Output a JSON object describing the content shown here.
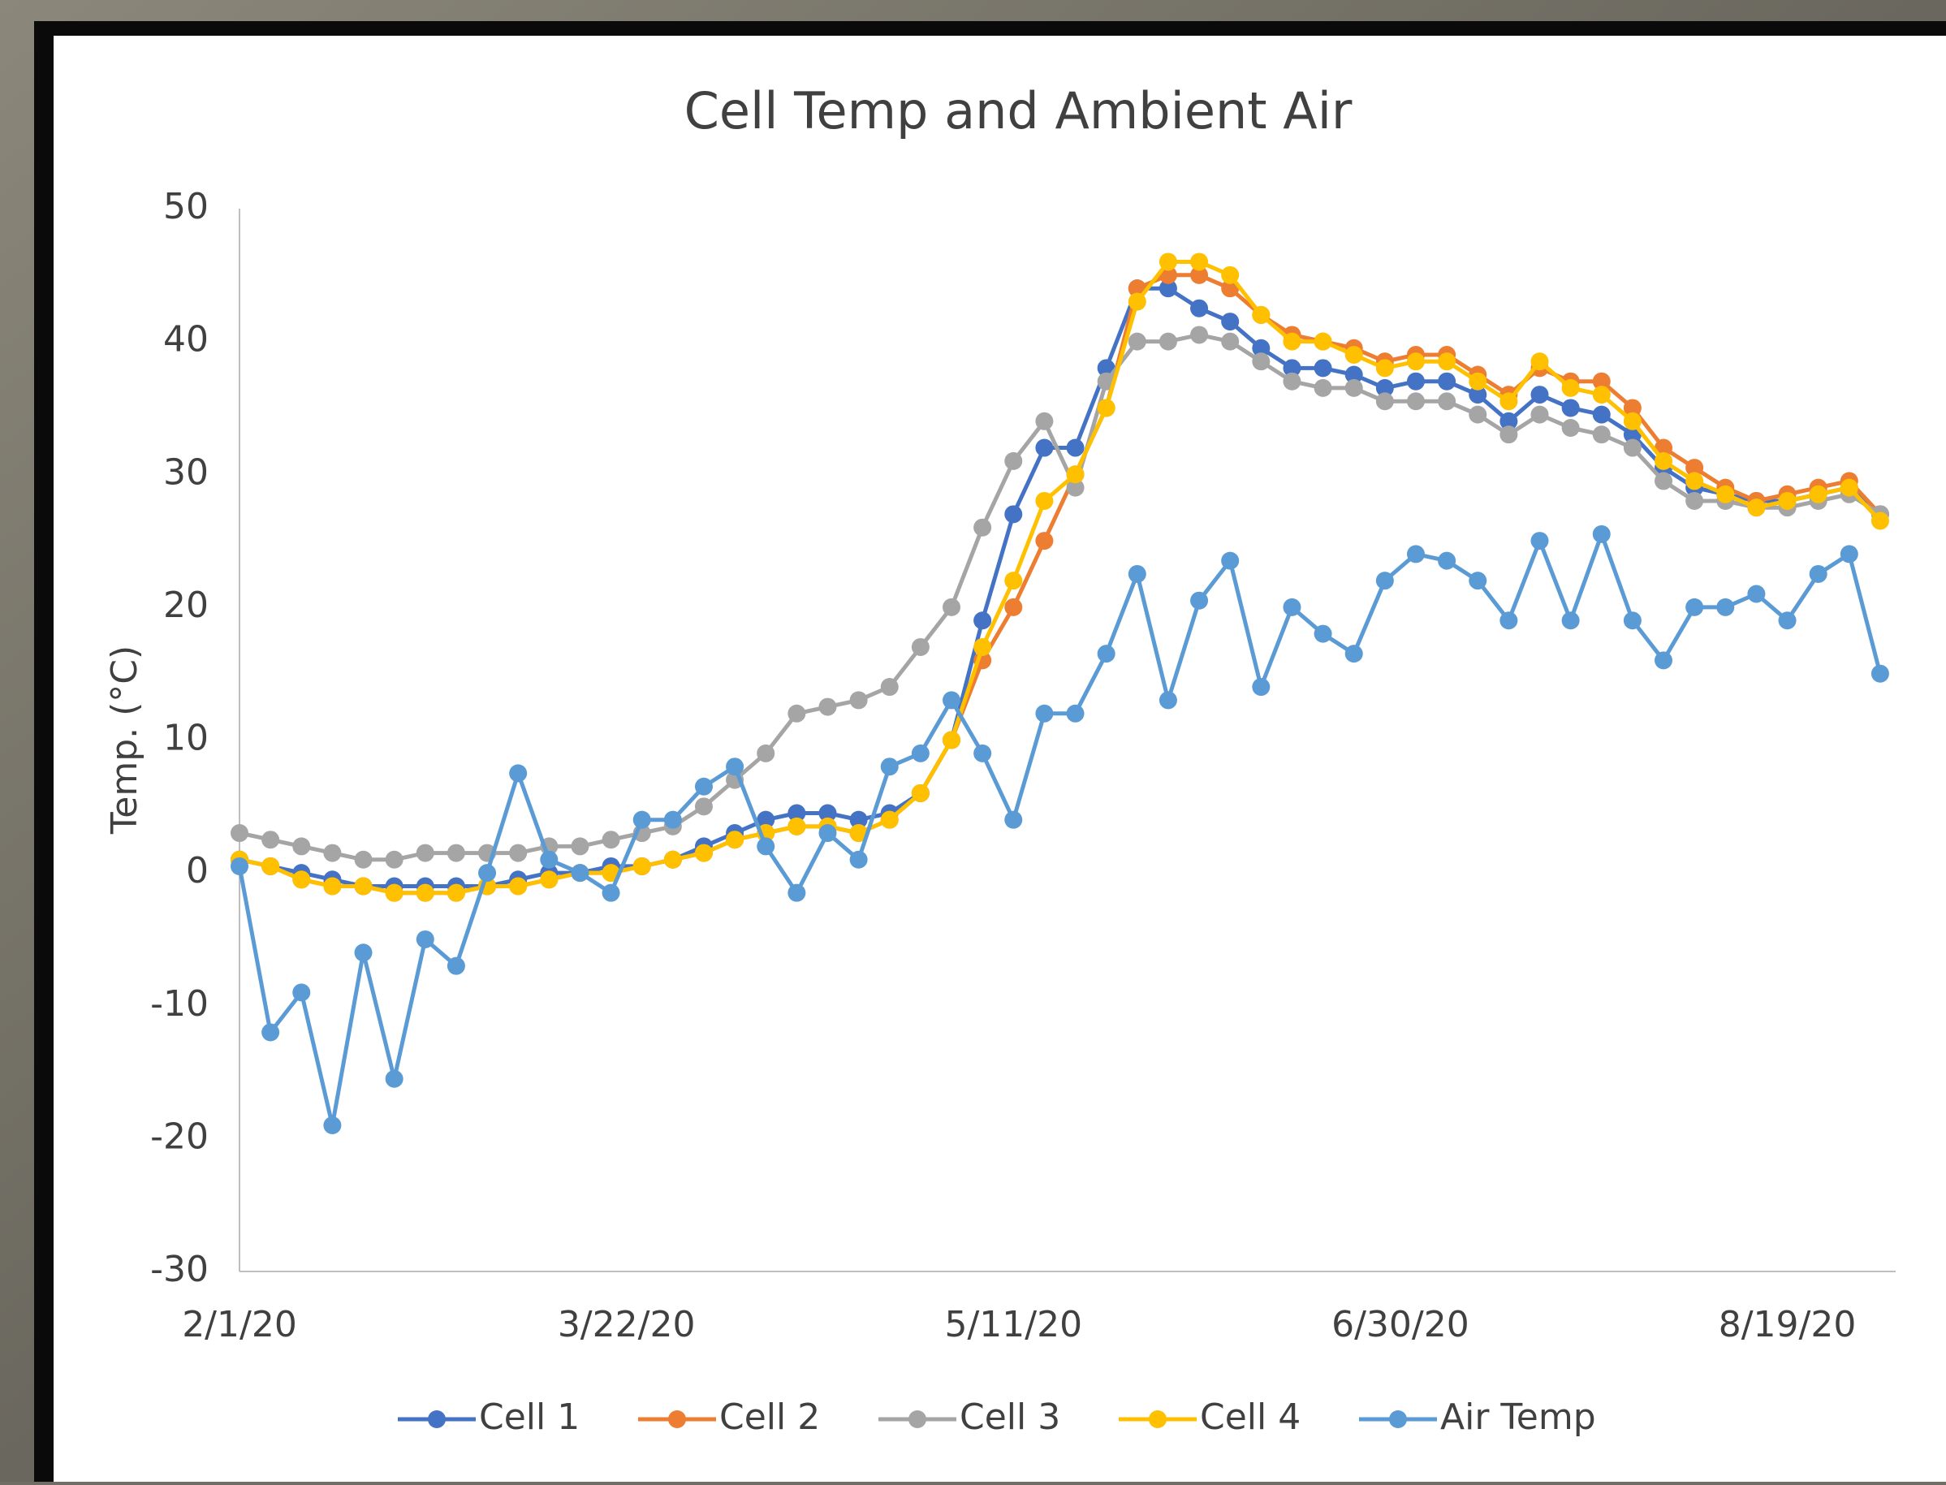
{
  "chart_data": {
    "type": "line",
    "title": "Cell Temp and Ambient Air",
    "y_label": "Temp. (°C)",
    "x": [
      "2/1/20",
      "2/5/20",
      "2/9/20",
      "2/13/20",
      "2/17/20",
      "2/21/20",
      "2/25/20",
      "2/29/20",
      "3/4/20",
      "3/8/20",
      "3/12/20",
      "3/16/20",
      "3/20/20",
      "3/24/20",
      "3/28/20",
      "4/1/20",
      "4/5/20",
      "4/9/20",
      "4/13/20",
      "4/17/20",
      "4/21/20",
      "4/25/20",
      "4/29/20",
      "5/3/20",
      "5/7/20",
      "5/11/20",
      "5/15/20",
      "5/19/20",
      "5/23/20",
      "5/27/20",
      "5/31/20",
      "6/4/20",
      "6/8/20",
      "6/12/20",
      "6/16/20",
      "6/20/20",
      "6/24/20",
      "6/28/20",
      "7/2/20",
      "7/6/20",
      "7/10/20",
      "7/14/20",
      "7/18/20",
      "7/22/20",
      "7/26/20",
      "7/30/20",
      "8/3/20",
      "8/7/20",
      "8/11/20",
      "8/15/20",
      "8/19/20",
      "8/23/20",
      "8/27/20",
      "8/31/20"
    ],
    "series": [
      {
        "name": "Cell 1",
        "color": "#4472c4",
        "values": [
          1,
          0.5,
          0,
          -0.5,
          -1,
          -1,
          -1,
          -1,
          -1,
          -0.5,
          0,
          0,
          0.5,
          0.5,
          1,
          2,
          3,
          4,
          4.5,
          4.5,
          4,
          4.5,
          6,
          10,
          19,
          27,
          32,
          32,
          38,
          44,
          44,
          42.5,
          41.5,
          39.5,
          38,
          38,
          37.5,
          36.5,
          37,
          37,
          36,
          34,
          36,
          35,
          34.5,
          33,
          30.5,
          29,
          28.5,
          28,
          28,
          28.5,
          29,
          27
        ]
      },
      {
        "name": "Cell 2",
        "color": "#ed7d31",
        "values": [
          1,
          0.5,
          -0.5,
          -1,
          -1,
          -1.5,
          -1.5,
          -1.5,
          -1,
          -1,
          -0.5,
          0,
          0,
          0.5,
          1,
          1.5,
          2.5,
          3,
          3.5,
          3.5,
          3,
          4,
          6,
          10,
          16,
          20,
          25,
          30,
          35,
          44,
          45,
          45,
          44,
          42,
          40.5,
          40,
          39.5,
          38.5,
          39,
          39,
          37.5,
          36,
          38,
          37,
          37,
          35,
          32,
          30.5,
          29,
          28,
          28.5,
          29,
          29.5,
          27
        ]
      },
      {
        "name": "Cell 3",
        "color": "#a5a5a5",
        "values": [
          3,
          2.5,
          2,
          1.5,
          1,
          1,
          1.5,
          1.5,
          1.5,
          1.5,
          2,
          2,
          2.5,
          3,
          3.5,
          5,
          7,
          9,
          12,
          12.5,
          13,
          14,
          17,
          20,
          26,
          31,
          34,
          29,
          37,
          40,
          40,
          40.5,
          40,
          38.5,
          37,
          36.5,
          36.5,
          35.5,
          35.5,
          35.5,
          34.5,
          33,
          34.5,
          33.5,
          33,
          32,
          29.5,
          28,
          28,
          27.5,
          27.5,
          28,
          28.5,
          27
        ]
      },
      {
        "name": "Cell 4",
        "color": "#ffc000",
        "values": [
          1,
          0.5,
          -0.5,
          -1,
          -1,
          -1.5,
          -1.5,
          -1.5,
          -1,
          -1,
          -0.5,
          0,
          0,
          0.5,
          1,
          1.5,
          2.5,
          3,
          3.5,
          3.5,
          3,
          4,
          6,
          10,
          17,
          22,
          28,
          30,
          35,
          43,
          46,
          46,
          45,
          42,
          40,
          40,
          39,
          38,
          38.5,
          38.5,
          37,
          35.5,
          38.5,
          36.5,
          36,
          34,
          31,
          29.5,
          28.5,
          27.5,
          28,
          28.5,
          29,
          26.5
        ]
      },
      {
        "name": "Air Temp",
        "color": "#5b9bd5",
        "values": [
          0.5,
          -12,
          -9,
          -19,
          -6,
          -15.5,
          -5,
          -7,
          0,
          7.5,
          1,
          0,
          -1.5,
          4,
          4,
          6.5,
          8,
          2,
          -1.5,
          3,
          1,
          8,
          9,
          13,
          9,
          4,
          12,
          12,
          16.5,
          22.5,
          13,
          20.5,
          23.5,
          14,
          20,
          18,
          16.5,
          22,
          24,
          23.5,
          22,
          19,
          25,
          19,
          25.5,
          19,
          16,
          20,
          20,
          21,
          19,
          22.5,
          24,
          15
        ]
      }
    ],
    "xlim": [
      "2/1/20",
      "9/2/20"
    ],
    "xticks": [
      "2/1/20",
      "3/22/20",
      "5/11/20",
      "6/30/20",
      "8/19/20"
    ],
    "ylim": [
      -30,
      50
    ],
    "yticks": [
      -30,
      -20,
      -10,
      0,
      10,
      20,
      30,
      40,
      50
    ],
    "grid": false,
    "legend": "bottom"
  }
}
